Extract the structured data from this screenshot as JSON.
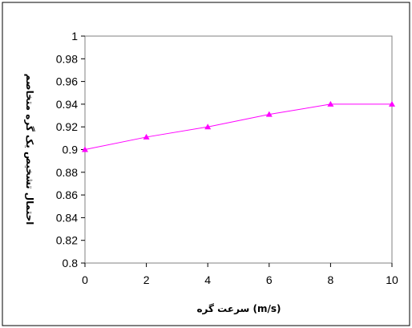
{
  "chart_data": {
    "type": "line",
    "title": "",
    "xlabel": "سرعت گره (m/s)",
    "ylabel": "احتمال تشخیص یک گره متخاصم",
    "x": [
      0,
      2,
      4,
      6,
      8,
      10
    ],
    "series": [
      {
        "values": [
          0.9,
          0.911,
          0.92,
          0.931,
          0.94,
          0.94
        ]
      }
    ],
    "xlim": [
      0,
      10
    ],
    "ylim": [
      0.8,
      1
    ],
    "xticks": [
      "0",
      "2",
      "4",
      "6",
      "8",
      "10"
    ],
    "yticks": [
      "0.8",
      "0.82",
      "0.84",
      "0.86",
      "0.88",
      "0.9",
      "0.92",
      "0.94",
      "0.96",
      "0.98",
      "1"
    ],
    "grid": false,
    "legend": "none",
    "marker": "triangle",
    "colors": {
      "series": "#FF00FF",
      "axis": "#000000"
    }
  }
}
